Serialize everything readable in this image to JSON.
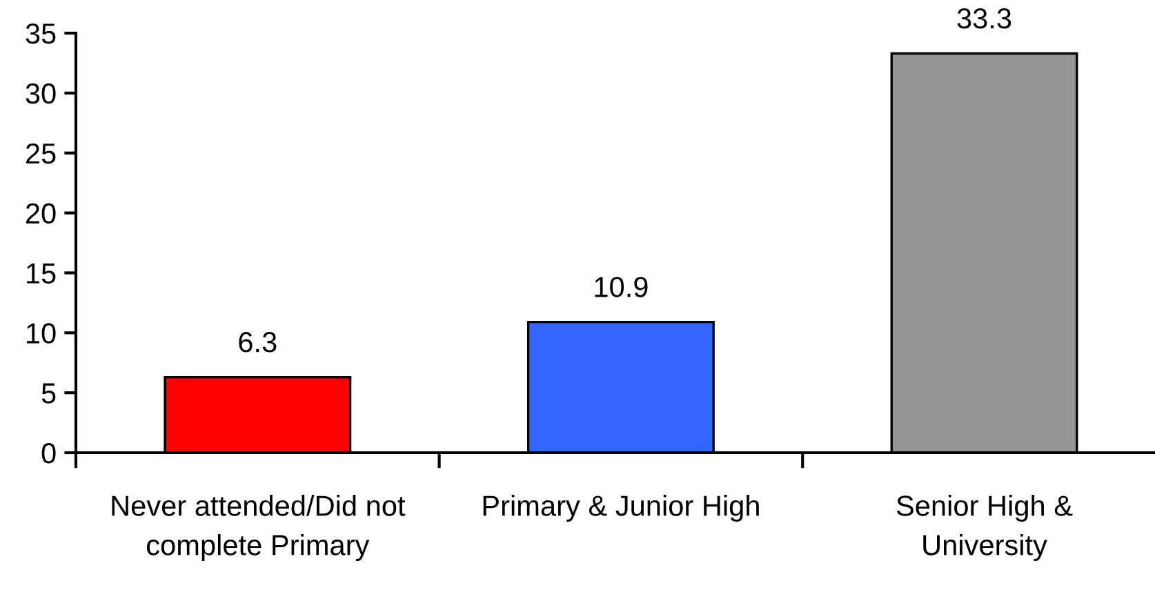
{
  "chart_data": {
    "type": "bar",
    "categories": [
      "Never attended/Did not\ncomplete Primary",
      "Primary & Junior High",
      "Senior High &\nUniversity"
    ],
    "values": [
      6.3,
      10.9,
      33.3
    ],
    "colors": [
      "#ff0000",
      "#3366ff",
      "#969696"
    ],
    "ylim": [
      0,
      35
    ],
    "yticks": [
      0,
      5,
      10,
      15,
      20,
      25,
      30,
      35
    ],
    "data_labels": true,
    "grid": false,
    "legend": false
  }
}
